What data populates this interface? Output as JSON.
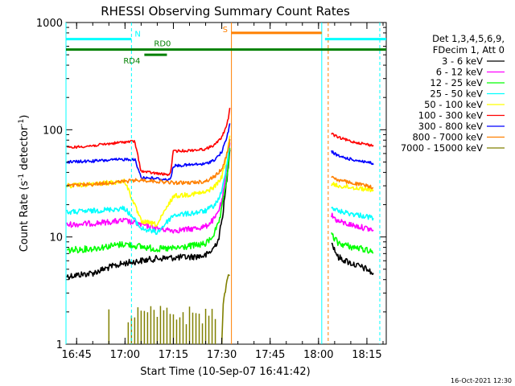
{
  "chart_data": {
    "type": "line",
    "title": "RHESSI Observing Summary Count Rates",
    "xlabel": "Start Time (10-Sep-07 16:41:42)",
    "ylabel_main": "Count Rate (s",
    "ylabel_sup1": "-1",
    "ylabel_mid": " detector",
    "ylabel_sup2": "-1",
    "ylabel_end": ")",
    "y_scale": "log",
    "ylim": [
      1,
      1000
    ],
    "xlim": [
      "16:41:42",
      "18:21:00"
    ],
    "y_ticks": [
      {
        "value": 1,
        "label": "1"
      },
      {
        "value": 10,
        "label": "10"
      },
      {
        "value": 100,
        "label": "100"
      },
      {
        "value": 1000,
        "label": "1000"
      }
    ],
    "x_ticks": [
      {
        "value": "16:45",
        "label": "16:45"
      },
      {
        "value": "17:00",
        "label": "17:00"
      },
      {
        "value": "17:15",
        "label": "17:15"
      },
      {
        "value": "17:30",
        "label": "17:30"
      },
      {
        "value": "17:45",
        "label": "17:45"
      },
      {
        "value": "18:00",
        "label": "18:00"
      },
      {
        "value": "18:15",
        "label": "18:15"
      }
    ],
    "legend_header": [
      "Det 1,3,4,5,6,9,",
      "FDecim 1, Att 0"
    ],
    "legend_position": "right",
    "series": [
      {
        "name": "3 - 6 keV",
        "color": "#000000",
        "points": [
          [
            "16:42",
            4.3
          ],
          [
            "16:50",
            4.6
          ],
          [
            "16:55",
            5.2
          ],
          [
            "17:00",
            5.7
          ],
          [
            "17:05",
            6.0
          ],
          [
            "17:10",
            6.3
          ],
          [
            "17:15",
            6.4
          ],
          [
            "17:20",
            6.5
          ],
          [
            "17:25",
            6.7
          ],
          [
            "17:27",
            7.5
          ],
          [
            "17:29",
            9.5
          ],
          [
            "17:30",
            14
          ],
          [
            "17:31",
            24
          ],
          [
            "17:32",
            45
          ],
          [
            "17:32:30",
            70
          ]
        ],
        "points_after": [
          [
            "18:04",
            9.0
          ],
          [
            "18:06",
            6.5
          ],
          [
            "18:10",
            5.7
          ],
          [
            "18:15",
            5.0
          ],
          [
            "18:17",
            4.5
          ]
        ]
      },
      {
        "name": "6 - 12 keV",
        "color": "#ff00ff",
        "points": [
          [
            "16:42",
            13
          ],
          [
            "16:50",
            13.4
          ],
          [
            "17:00",
            14.2
          ],
          [
            "17:05",
            13.0
          ],
          [
            "17:10",
            12.0
          ],
          [
            "17:15",
            11.5
          ],
          [
            "17:20",
            11.8
          ],
          [
            "17:25",
            12.5
          ],
          [
            "17:28",
            15
          ],
          [
            "17:30",
            21
          ],
          [
            "17:31",
            32
          ],
          [
            "17:32",
            55
          ],
          [
            "17:32:30",
            75
          ]
        ],
        "points_after": [
          [
            "18:04",
            16
          ],
          [
            "18:06",
            14
          ],
          [
            "18:10",
            13
          ],
          [
            "18:15",
            12
          ],
          [
            "18:17",
            11.5
          ]
        ]
      },
      {
        "name": "12 - 25 keV",
        "color": "#00ff00",
        "points": [
          [
            "16:42",
            7.5
          ],
          [
            "16:50",
            7.8
          ],
          [
            "16:55",
            8.2
          ],
          [
            "17:00",
            8.6
          ],
          [
            "17:05",
            8.1
          ],
          [
            "17:10",
            7.7
          ],
          [
            "17:15",
            7.8
          ],
          [
            "17:20",
            8.2
          ],
          [
            "17:25",
            8.6
          ],
          [
            "17:27",
            10
          ],
          [
            "17:29",
            13
          ],
          [
            "17:30",
            18
          ],
          [
            "17:31",
            28
          ],
          [
            "17:32",
            45
          ],
          [
            "17:32:30",
            70
          ]
        ],
        "points_after": [
          [
            "18:04",
            10.5
          ],
          [
            "18:06",
            8.8
          ],
          [
            "18:10",
            8.1
          ],
          [
            "18:15",
            7.6
          ],
          [
            "18:17",
            7.3
          ]
        ]
      },
      {
        "name": "25 - 50 keV",
        "color": "#00ffff",
        "points": [
          [
            "16:42",
            17
          ],
          [
            "16:50",
            17.5
          ],
          [
            "17:00",
            18.5
          ],
          [
            "17:05",
            12
          ],
          [
            "17:10",
            11
          ],
          [
            "17:15",
            16
          ],
          [
            "17:20",
            16.5
          ],
          [
            "17:25",
            17.5
          ],
          [
            "17:28",
            20
          ],
          [
            "17:30",
            26
          ],
          [
            "17:31",
            38
          ],
          [
            "17:32",
            60
          ],
          [
            "17:32:30",
            80
          ]
        ],
        "points_after": [
          [
            "18:04",
            19
          ],
          [
            "18:06",
            17.5
          ],
          [
            "18:10",
            16.5
          ],
          [
            "18:15",
            15.5
          ],
          [
            "18:17",
            15
          ]
        ]
      },
      {
        "name": "50 - 100 keV",
        "color": "#ffff00",
        "points": [
          [
            "16:42",
            30
          ],
          [
            "16:50",
            31
          ],
          [
            "17:00",
            33
          ],
          [
            "17:05",
            14
          ],
          [
            "17:10",
            13
          ],
          [
            "17:15",
            24
          ],
          [
            "17:20",
            25
          ],
          [
            "17:25",
            26
          ],
          [
            "17:28",
            30
          ],
          [
            "17:30",
            36
          ],
          [
            "17:31",
            48
          ],
          [
            "17:32",
            70
          ],
          [
            "17:32:30",
            90
          ]
        ],
        "points_after": [
          [
            "18:04",
            31
          ],
          [
            "18:06",
            30
          ],
          [
            "18:10",
            29
          ],
          [
            "18:15",
            28
          ],
          [
            "18:17",
            27.5
          ]
        ]
      },
      {
        "name": "100 - 300 keV",
        "color": "#ff0000",
        "points": [
          [
            "16:42",
            68
          ],
          [
            "16:50",
            71
          ],
          [
            "16:55",
            74
          ],
          [
            "17:00",
            77
          ],
          [
            "17:03",
            78
          ],
          [
            "17:05",
            41
          ],
          [
            "17:10",
            39
          ],
          [
            "17:14",
            38
          ],
          [
            "17:15",
            63
          ],
          [
            "17:20",
            64
          ],
          [
            "17:25",
            66
          ],
          [
            "17:28",
            73
          ],
          [
            "17:30",
            85
          ],
          [
            "17:31",
            100
          ],
          [
            "17:32",
            125
          ],
          [
            "17:32:30",
            160
          ]
        ],
        "points_after": [
          [
            "18:04",
            92
          ],
          [
            "18:06",
            85
          ],
          [
            "18:10",
            78
          ],
          [
            "18:15",
            73
          ],
          [
            "18:17",
            71
          ]
        ]
      },
      {
        "name": "300 - 800 keV",
        "color": "#0000ff",
        "points": [
          [
            "16:42",
            50
          ],
          [
            "16:50",
            51
          ],
          [
            "16:55",
            52
          ],
          [
            "17:00",
            53
          ],
          [
            "17:03",
            53
          ],
          [
            "17:05",
            36
          ],
          [
            "17:10",
            35
          ],
          [
            "17:14",
            34
          ],
          [
            "17:15",
            46
          ],
          [
            "17:20",
            47
          ],
          [
            "17:25",
            48
          ],
          [
            "17:28",
            53
          ],
          [
            "17:30",
            62
          ],
          [
            "17:31",
            75
          ],
          [
            "17:32",
            95
          ],
          [
            "17:32:30",
            115
          ]
        ],
        "points_after": [
          [
            "18:04",
            63
          ],
          [
            "18:06",
            57
          ],
          [
            "18:10",
            53
          ],
          [
            "18:15",
            50
          ],
          [
            "18:17",
            48
          ]
        ]
      },
      {
        "name": "800 - 7000 keV",
        "color": "#ff8000",
        "points": [
          [
            "16:42",
            30
          ],
          [
            "16:50",
            31
          ],
          [
            "17:00",
            33
          ],
          [
            "17:05",
            34
          ],
          [
            "17:10",
            33
          ],
          [
            "17:15",
            32
          ],
          [
            "17:20",
            32
          ],
          [
            "17:25",
            33
          ],
          [
            "17:28",
            37
          ],
          [
            "17:30",
            43
          ],
          [
            "17:31",
            52
          ],
          [
            "17:32",
            65
          ],
          [
            "17:32:30",
            80
          ]
        ],
        "points_after": [
          [
            "18:04",
            37
          ],
          [
            "18:06",
            34
          ],
          [
            "18:10",
            32
          ],
          [
            "18:15",
            30
          ],
          [
            "18:17",
            29
          ]
        ]
      },
      {
        "name": "7000 - 15000 keV",
        "color": "#808000",
        "points": [
          [
            "17:30",
            1.0
          ],
          [
            "17:30:30",
            2.5
          ],
          [
            "17:31",
            3.0
          ],
          [
            "17:32",
            4.5
          ],
          [
            "17:32:30",
            4.5
          ]
        ],
        "spikes": [
          "16:55",
          "17:01",
          "17:02",
          "17:03",
          "17:04",
          "17:05",
          "17:06",
          "17:07",
          "17:08",
          "17:09",
          "17:10",
          "17:11",
          "17:12",
          "17:13",
          "17:14",
          "17:15",
          "17:16",
          "17:17",
          "17:18",
          "17:19",
          "17:20",
          "17:21",
          "17:22",
          "17:23",
          "17:24",
          "17:25",
          "17:26",
          "17:27",
          "17:28"
        ]
      }
    ],
    "annotations": [
      {
        "label": "N",
        "color": "#00ffff",
        "y": 700,
        "segments": [
          [
            "16:41:42",
            "17:02"
          ],
          [
            "18:02",
            "18:21"
          ]
        ]
      },
      {
        "label": "S",
        "color": "#ff8000",
        "y": 800,
        "segments": [
          [
            "17:33",
            "18:01"
          ]
        ]
      },
      {
        "label": "RD0",
        "color": "#008000",
        "y": 560,
        "segments": [
          [
            "16:41:42",
            "18:21"
          ]
        ]
      },
      {
        "label": "RD4",
        "color": "#008000",
        "y": 500,
        "segments": [
          [
            "17:06",
            "17:13"
          ]
        ]
      }
    ],
    "vertical_lines": [
      {
        "x": "16:41:42",
        "color": "#00ffff",
        "style": "solid"
      },
      {
        "x": "17:02",
        "color": "#00ffff",
        "style": "dashed"
      },
      {
        "x": "17:33",
        "color": "#ff8000",
        "style": "solid"
      },
      {
        "x": "18:01",
        "color": "#00ffff",
        "style": "solid"
      },
      {
        "x": "18:03",
        "color": "#ff8000",
        "style": "dashed"
      },
      {
        "x": "18:19",
        "color": "#00ffff",
        "style": "dashed"
      }
    ],
    "grid": false
  },
  "footer": {
    "timestamp": "16-Oct-2021 12:30"
  }
}
